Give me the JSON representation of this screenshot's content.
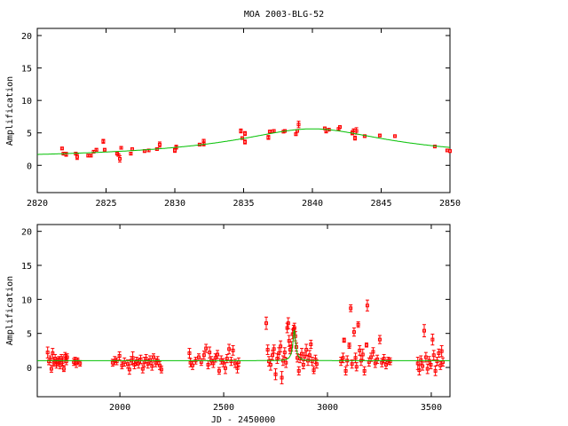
{
  "chart_data": [
    {
      "type": "scatter",
      "title": "MOA 2003-BLG-52",
      "xlabel": "",
      "ylabel": "Amplification",
      "xlim": [
        2820,
        2850
      ],
      "ylim": [
        -4.2,
        21.1
      ],
      "xticks": [
        2820,
        2825,
        2830,
        2835,
        2840,
        2845,
        2850
      ],
      "yticks": [
        0,
        5,
        10,
        15,
        20
      ],
      "colors": {
        "data": "#ff0000",
        "model": "#00c000"
      },
      "model": {
        "type": "paczynski",
        "t0": 2840,
        "u0": 0.18,
        "tE": 29.6,
        "baseline": 1
      },
      "points": [
        [
          2821.8,
          2.6,
          0.2
        ],
        [
          2821.9,
          1.8,
          0.2
        ],
        [
          2822.1,
          1.7,
          0.3
        ],
        [
          2822.8,
          1.8,
          0.2
        ],
        [
          2822.9,
          1.3,
          0.4
        ],
        [
          2823.7,
          1.5,
          0.2
        ],
        [
          2823.9,
          1.5,
          0.2
        ],
        [
          2824.1,
          2.1,
          0.2
        ],
        [
          2824.3,
          2.4,
          0.2
        ],
        [
          2824.8,
          3.7,
          0.3
        ],
        [
          2824.9,
          2.4,
          0.2
        ],
        [
          2825.8,
          1.8,
          0.2
        ],
        [
          2825.9,
          1.6,
          0.2
        ],
        [
          2826.0,
          1.0,
          0.5
        ],
        [
          2826.1,
          2.7,
          0.2
        ],
        [
          2826.8,
          1.8,
          0.2
        ],
        [
          2826.9,
          2.5,
          0.2
        ],
        [
          2827.8,
          2.2,
          0.2
        ],
        [
          2828.1,
          2.3,
          0.2
        ],
        [
          2828.7,
          2.5,
          0.2
        ],
        [
          2828.9,
          3.2,
          0.4
        ],
        [
          2830.0,
          2.3,
          0.3
        ],
        [
          2830.1,
          2.8,
          0.3
        ],
        [
          2831.8,
          3.2,
          0.2
        ],
        [
          2832.1,
          3.8,
          0.2
        ],
        [
          2832.1,
          3.3,
          0.3
        ],
        [
          2834.8,
          5.3,
          0.3
        ],
        [
          2834.9,
          4.2,
          0.2
        ],
        [
          2835.1,
          4.9,
          0.3
        ],
        [
          2835.1,
          3.6,
          0.3
        ],
        [
          2836.8,
          4.3,
          0.3
        ],
        [
          2836.9,
          5.2,
          0.2
        ],
        [
          2837.0,
          5.2,
          0.2
        ],
        [
          2837.2,
          5.3,
          0.2
        ],
        [
          2837.9,
          5.2,
          0.2
        ],
        [
          2838.0,
          5.3,
          0.2
        ],
        [
          2838.8,
          4.8,
          0.2
        ],
        [
          2838.9,
          5.3,
          0.2
        ],
        [
          2839.0,
          6.3,
          0.5
        ],
        [
          2840.9,
          5.7,
          0.2
        ],
        [
          2841.0,
          5.3,
          0.3
        ],
        [
          2841.2,
          5.5,
          0.2
        ],
        [
          2841.9,
          5.6,
          0.2
        ],
        [
          2842.0,
          5.9,
          0.2
        ],
        [
          2842.9,
          5.0,
          0.3
        ],
        [
          2843.0,
          5.4,
          0.2
        ],
        [
          2843.1,
          4.2,
          0.3
        ],
        [
          2843.2,
          5.3,
          0.5
        ],
        [
          2843.8,
          4.5,
          0.2
        ],
        [
          2844.9,
          4.6,
          0.2
        ],
        [
          2846.0,
          4.5,
          0.2
        ],
        [
          2848.9,
          2.9,
          0.2
        ],
        [
          2849.8,
          2.3,
          0.2
        ],
        [
          2850.0,
          2.2,
          0.2
        ]
      ]
    },
    {
      "type": "scatter",
      "title": "",
      "xlabel": "JD - 2450000",
      "ylabel": "Amplification",
      "xlim": [
        1602,
        3590
      ],
      "ylim": [
        -4.3,
        21.0
      ],
      "xticks": [
        2000,
        2500,
        3000,
        3500
      ],
      "yticks": [
        0,
        5,
        10,
        15,
        20
      ],
      "colors": {
        "data": "#ff0000",
        "model": "#00c000"
      },
      "model": {
        "type": "paczynski",
        "t0": 2840,
        "u0": 0.18,
        "tE": 29.6,
        "baseline": 1
      },
      "points": [
        [
          1652,
          2.2,
          0.8
        ],
        [
          1658,
          0.9,
          0.5
        ],
        [
          1664,
          1.2,
          0.5
        ],
        [
          1670,
          -0.2,
          0.5
        ],
        [
          1676,
          2.1,
          0.7
        ],
        [
          1682,
          0.7,
          0.5
        ],
        [
          1688,
          1.3,
          0.6
        ],
        [
          1694,
          0.4,
          0.5
        ],
        [
          1700,
          0.9,
          0.5
        ],
        [
          1706,
          1.1,
          0.5
        ],
        [
          1712,
          0.3,
          0.5
        ],
        [
          1718,
          1.4,
          0.5
        ],
        [
          1724,
          0.8,
          0.5
        ],
        [
          1730,
          -0.2,
          0.4
        ],
        [
          1736,
          1.7,
          0.5
        ],
        [
          1742,
          0.9,
          0.5
        ],
        [
          1746,
          1.5,
          0.5
        ],
        [
          1778,
          0.8,
          0.5
        ],
        [
          1784,
          1.0,
          0.5
        ],
        [
          1790,
          0.6,
          0.6
        ],
        [
          1796,
          1.0,
          0.4
        ],
        [
          1808,
          0.6,
          0.4
        ],
        [
          1965,
          0.7,
          0.5
        ],
        [
          1975,
          1.0,
          0.6
        ],
        [
          1985,
          0.9,
          0.5
        ],
        [
          1998,
          1.7,
          0.6
        ],
        [
          2010,
          0.3,
          0.5
        ],
        [
          2022,
          0.8,
          0.6
        ],
        [
          2038,
          0.5,
          0.6
        ],
        [
          2046,
          -0.3,
          0.7
        ],
        [
          2055,
          1.0,
          0.6
        ],
        [
          2062,
          1.4,
          0.9
        ],
        [
          2070,
          0.4,
          0.6
        ],
        [
          2080,
          0.9,
          0.6
        ],
        [
          2090,
          0.6,
          0.7
        ],
        [
          2100,
          1.2,
          0.6
        ],
        [
          2110,
          -0.2,
          0.6
        ],
        [
          2118,
          0.8,
          0.7
        ],
        [
          2126,
          1.3,
          0.6
        ],
        [
          2135,
          0.5,
          0.6
        ],
        [
          2145,
          1.1,
          0.6
        ],
        [
          2155,
          0.2,
          0.6
        ],
        [
          2162,
          1.5,
          0.5
        ],
        [
          2172,
          0.7,
          0.6
        ],
        [
          2182,
          1.0,
          0.6
        ],
        [
          2192,
          0.3,
          0.6
        ],
        [
          2200,
          -0.3,
          0.5
        ],
        [
          2335,
          2.1,
          0.7
        ],
        [
          2340,
          0.7,
          0.6
        ],
        [
          2350,
          0.3,
          0.6
        ],
        [
          2365,
          1.0,
          0.5
        ],
        [
          2380,
          1.5,
          0.5
        ],
        [
          2392,
          0.8,
          0.5
        ],
        [
          2405,
          1.8,
          0.6
        ],
        [
          2415,
          2.8,
          0.6
        ],
        [
          2425,
          0.4,
          0.6
        ],
        [
          2432,
          2.2,
          0.8
        ],
        [
          2440,
          1.0,
          0.6
        ],
        [
          2450,
          0.6,
          0.6
        ],
        [
          2460,
          1.4,
          0.6
        ],
        [
          2470,
          1.9,
          0.6
        ],
        [
          2478,
          -0.5,
          0.5
        ],
        [
          2488,
          1.1,
          0.6
        ],
        [
          2498,
          0.7,
          0.6
        ],
        [
          2508,
          -0.1,
          0.8
        ],
        [
          2516,
          1.3,
          0.6
        ],
        [
          2526,
          2.7,
          0.7
        ],
        [
          2536,
          0.9,
          0.6
        ],
        [
          2545,
          2.5,
          0.7
        ],
        [
          2555,
          0.6,
          0.6
        ],
        [
          2566,
          -0.1,
          0.7
        ],
        [
          2572,
          0.8,
          0.6
        ],
        [
          2705,
          6.5,
          0.9
        ],
        [
          2712,
          2.6,
          0.7
        ],
        [
          2718,
          0.9,
          0.7
        ],
        [
          2726,
          0.4,
          0.8
        ],
        [
          2735,
          1.8,
          0.7
        ],
        [
          2742,
          2.7,
          0.6
        ],
        [
          2750,
          -1.0,
          0.8
        ],
        [
          2758,
          1.3,
          0.7
        ],
        [
          2766,
          2.1,
          0.8
        ],
        [
          2774,
          3.1,
          0.8
        ],
        [
          2780,
          -1.5,
          0.9
        ],
        [
          2786,
          1.0,
          0.7
        ],
        [
          2794,
          2.2,
          0.7
        ],
        [
          2800,
          0.7,
          0.7
        ],
        [
          2806,
          5.8,
          0.7
        ],
        [
          2811,
          6.5,
          0.8
        ],
        [
          2815,
          3.9,
          0.8
        ],
        [
          2820,
          2.6,
          0.6
        ],
        [
          2826,
          3.1,
          0.7
        ],
        [
          2832,
          4.9,
          0.7
        ],
        [
          2837,
          5.6,
          0.6
        ],
        [
          2841,
          5.8,
          0.7
        ],
        [
          2845,
          4.6,
          0.7
        ],
        [
          2850,
          3.0,
          0.6
        ],
        [
          2855,
          1.4,
          0.6
        ],
        [
          2862,
          -0.5,
          0.6
        ],
        [
          2868,
          1.3,
          0.6
        ],
        [
          2876,
          2.0,
          0.8
        ],
        [
          2884,
          0.4,
          0.6
        ],
        [
          2890,
          1.6,
          0.6
        ],
        [
          2898,
          2.6,
          0.8
        ],
        [
          2906,
          1.0,
          0.7
        ],
        [
          2914,
          1.8,
          0.7
        ],
        [
          2920,
          3.4,
          0.6
        ],
        [
          2926,
          0.9,
          0.6
        ],
        [
          2934,
          -0.4,
          0.5
        ],
        [
          2942,
          1.2,
          0.6
        ],
        [
          2948,
          0.5,
          0.6
        ],
        [
          3065,
          0.9,
          0.6
        ],
        [
          3075,
          1.4,
          0.7
        ],
        [
          3080,
          4.0,
          0.3
        ],
        [
          3088,
          -0.5,
          0.6
        ],
        [
          3095,
          1.0,
          0.7
        ],
        [
          3105,
          3.2,
          0.4
        ],
        [
          3112,
          8.7,
          0.5
        ],
        [
          3118,
          0.5,
          0.6
        ],
        [
          3128,
          5.2,
          0.6
        ],
        [
          3135,
          1.4,
          0.7
        ],
        [
          3140,
          0.1,
          0.6
        ],
        [
          3148,
          6.3,
          0.4
        ],
        [
          3155,
          2.5,
          0.7
        ],
        [
          3162,
          1.0,
          0.7
        ],
        [
          3170,
          1.9,
          0.8
        ],
        [
          3178,
          -0.5,
          0.6
        ],
        [
          3188,
          3.3,
          0.3
        ],
        [
          3192,
          9.1,
          0.8
        ],
        [
          3200,
          0.8,
          0.6
        ],
        [
          3210,
          1.5,
          0.6
        ],
        [
          3220,
          2.3,
          0.6
        ],
        [
          3230,
          0.6,
          0.6
        ],
        [
          3240,
          1.2,
          0.6
        ],
        [
          3252,
          4.1,
          0.6
        ],
        [
          3262,
          0.7,
          0.6
        ],
        [
          3272,
          1.3,
          0.6
        ],
        [
          3282,
          0.4,
          0.6
        ],
        [
          3292,
          1.0,
          0.5
        ],
        [
          3302,
          0.9,
          0.5
        ],
        [
          3435,
          0.6,
          0.9
        ],
        [
          3442,
          -0.4,
          0.7
        ],
        [
          3450,
          1.1,
          0.6
        ],
        [
          3458,
          0.2,
          0.6
        ],
        [
          3466,
          5.4,
          0.9
        ],
        [
          3474,
          1.5,
          0.7
        ],
        [
          3482,
          -0.2,
          0.7
        ],
        [
          3490,
          1.0,
          0.6
        ],
        [
          3498,
          0.4,
          0.6
        ],
        [
          3506,
          4.1,
          0.8
        ],
        [
          3512,
          1.8,
          0.7
        ],
        [
          3520,
          -0.5,
          0.7
        ],
        [
          3528,
          0.9,
          0.6
        ],
        [
          3536,
          2.1,
          0.6
        ],
        [
          3544,
          0.3,
          0.6
        ],
        [
          3550,
          2.4,
          0.8
        ],
        [
          3556,
          0.8,
          0.6
        ]
      ]
    }
  ]
}
